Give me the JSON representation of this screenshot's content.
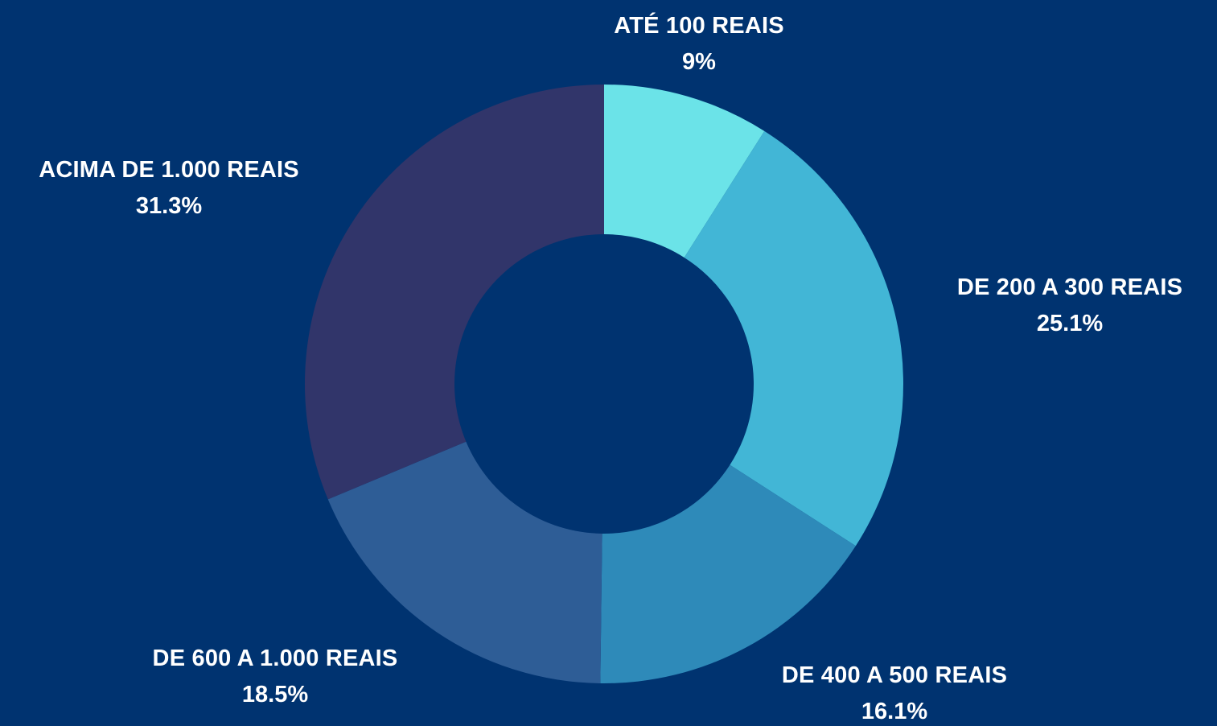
{
  "chart_data": {
    "type": "pie",
    "variant": "donut",
    "title": "",
    "background": "#003370",
    "categories": [
      "ATÉ 100 REAIS",
      "DE 200 A 300 REAIS",
      "DE 400 A 500 REAIS",
      "DE 600 A 1.000 REAIS",
      "ACIMA DE 1.000 REAIS"
    ],
    "values": [
      9,
      25.1,
      16.1,
      18.5,
      31.3
    ],
    "value_labels": [
      "9%",
      "25.1%",
      "16.1%",
      "18.5%",
      "31.3%"
    ],
    "colors": [
      "#6BE3E8",
      "#42B6D6",
      "#2E8AB9",
      "#2E5D96",
      "#31356A"
    ],
    "start": "12 o'clock",
    "direction": "clockwise",
    "legend": "none"
  }
}
